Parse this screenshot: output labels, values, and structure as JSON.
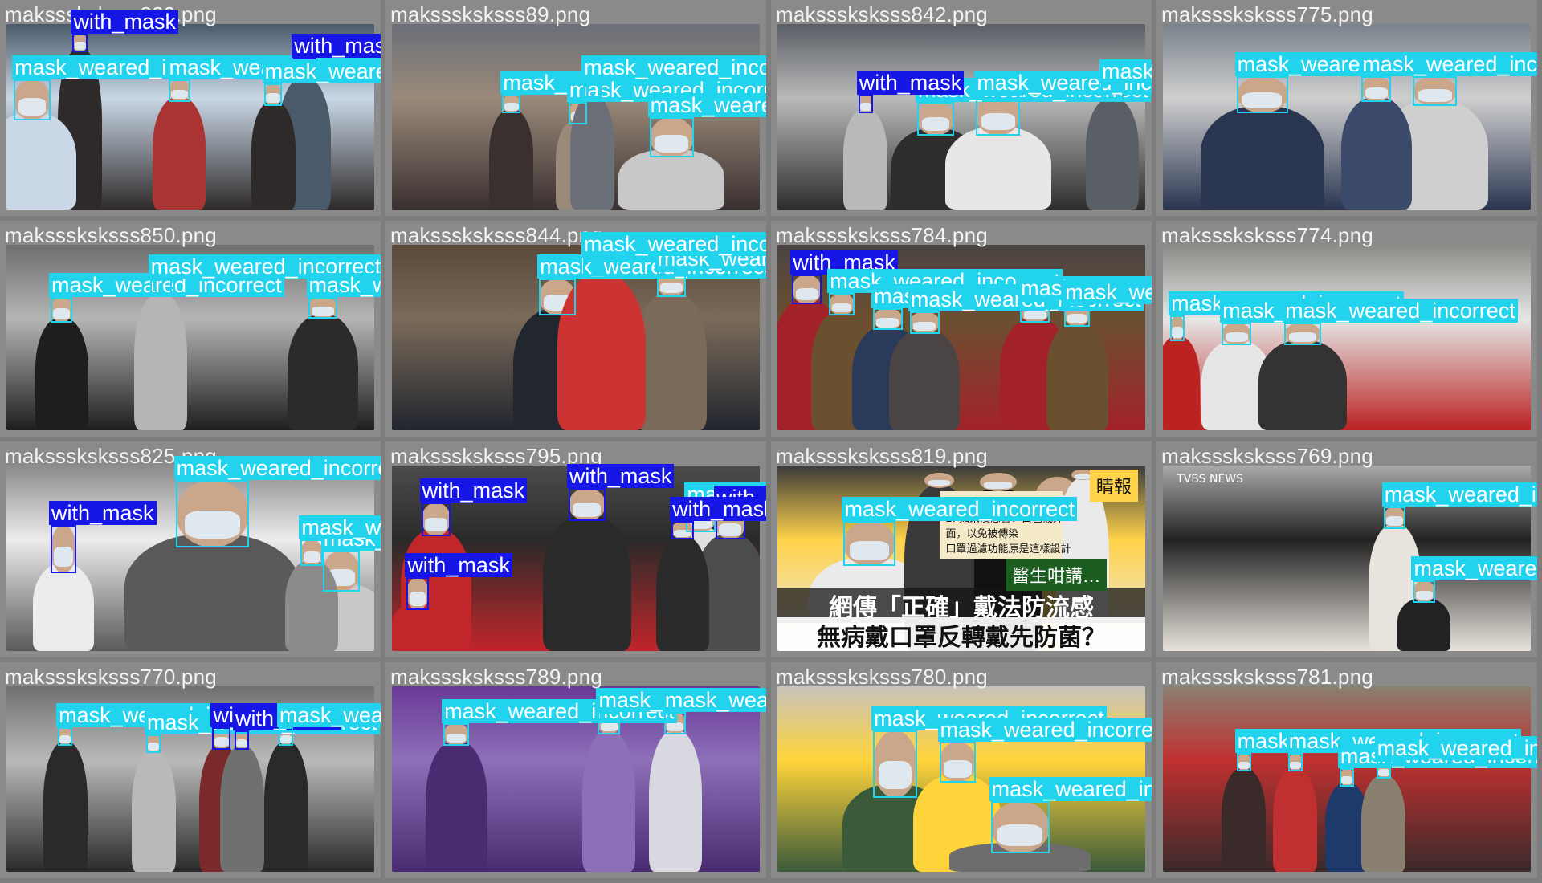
{
  "grid": {
    "tiles": [
      {
        "file": "maksssksksss829.png",
        "colors": [
          "#4a5a6a",
          "#2e2a2a",
          "#c9d7e6",
          "#a33"
        ],
        "detections": [
          {
            "label": "with_mask",
            "cls": "wm"
          },
          {
            "label": "mask_weared_incorrect",
            "cls": "mwi"
          },
          {
            "label": "mask_weared_incorrect",
            "cls": "mwi"
          },
          {
            "label": "with_mask",
            "cls": "wm"
          },
          {
            "label": "mask_weared_incorrect",
            "cls": "mwi"
          }
        ]
      },
      {
        "file": "maksssksksss89.png",
        "colors": [
          "#6b6f78",
          "#3a3030",
          "#9a8a7a",
          "#c8c8c8"
        ],
        "detections": [
          {
            "label": "mask_weared_incorrect",
            "cls": "mwi"
          },
          {
            "label": "mask_weared_incorrect",
            "cls": "mwi"
          },
          {
            "label": "mask_weared_incorrect",
            "cls": "mwi"
          },
          {
            "label": "mask_weared_incorrect",
            "cls": "mwi"
          }
        ]
      },
      {
        "file": "maksssksksss842.png",
        "colors": [
          "#5a5f66",
          "#2d2d2d",
          "#b9b9b9",
          "#e7e7e7"
        ],
        "detections": [
          {
            "label": "mask_weared_incorrect",
            "cls": "mwi"
          },
          {
            "label": "with_mask",
            "cls": "wm"
          },
          {
            "label": "mask_weared_incorrect",
            "cls": "mwi"
          },
          {
            "label": "mask_weared_incorrect",
            "cls": "mwi"
          }
        ]
      },
      {
        "file": "maksssksksss775.png",
        "colors": [
          "#7a828c",
          "#2a3550",
          "#cfcfcf",
          "#3b4a6a"
        ],
        "detections": [
          {
            "label": "mask_weared_incorrect",
            "cls": "mwi"
          },
          {
            "label": "mask_weared_incorrect",
            "cls": "mwi"
          },
          {
            "label": "mask_weared_incorrect",
            "cls": "mwi"
          }
        ]
      },
      {
        "file": "maksssksksss850.png",
        "colors": [
          "#6e6e6e",
          "#1e1e1e",
          "#b5b5b5",
          "#2b2b2b"
        ],
        "detections": [
          {
            "label": "mask_weared_incorrect",
            "cls": "mwi"
          },
          {
            "label": "mask_weared_incorrect",
            "cls": "mwi"
          },
          {
            "label": "mask_weared_incorrect",
            "cls": "mwi"
          }
        ]
      },
      {
        "file": "maksssksksss844.png",
        "colors": [
          "#5b4a3a",
          "#22262e",
          "#7a6a5a",
          "#c33"
        ],
        "detections": [
          {
            "label": "mask_weared_incorrect",
            "cls": "mwi"
          },
          {
            "label": "mask_weared_incorrect",
            "cls": "mwi"
          },
          {
            "label": "mask_weared_incorrect",
            "cls": "mwi"
          }
        ]
      },
      {
        "file": "maksssksksss784.png",
        "colors": [
          "#4a4444",
          "#a3222a",
          "#6b5030",
          "#2a3a5a"
        ],
        "detections": [
          {
            "label": "with_mask",
            "cls": "wm"
          },
          {
            "label": "mask_weared_incorrect",
            "cls": "mwi"
          },
          {
            "label": "mask_weared_incorrect",
            "cls": "mwi"
          },
          {
            "label": "mask_weared_incorrect",
            "cls": "mwi"
          },
          {
            "label": "mask_weared_incorrect",
            "cls": "mwi"
          },
          {
            "label": "mask_weared_incorrect",
            "cls": "mwi"
          }
        ]
      },
      {
        "file": "maksssksksss774.png",
        "colors": [
          "#8a8a86",
          "#b22",
          "#e6e6e6",
          "#333"
        ],
        "detections": [
          {
            "label": "mask_weared_incorrect",
            "cls": "mwi"
          },
          {
            "label": "mask_weared_incorrect",
            "cls": "mwi"
          },
          {
            "label": "mask_weared_incorrect",
            "cls": "mwi"
          }
        ]
      },
      {
        "file": "maksssksksss825.png",
        "colors": [
          "#8b8b8b",
          "#5a5a5a",
          "#ececec",
          "#c8c8c8"
        ],
        "detections": [
          {
            "label": "mask_weared_incorrect",
            "cls": "mwi"
          },
          {
            "label": "with_mask",
            "cls": "wm"
          },
          {
            "label": "mask_weared_incorrect",
            "cls": "mwi"
          },
          {
            "label": "mask_weared_incorrect",
            "cls": "mwi"
          }
        ]
      },
      {
        "file": "maksssksksss795.png",
        "colors": [
          "#4c4c4c",
          "#c0262a",
          "#2a2a2a",
          "#e0e0e0"
        ],
        "detections": [
          {
            "label": "with_mask",
            "cls": "wm"
          },
          {
            "label": "with_mask",
            "cls": "wm"
          },
          {
            "label": "mask_weared_incorrect",
            "cls": "mwi"
          },
          {
            "label": "with_mask",
            "cls": "wm"
          },
          {
            "label": "with_mask",
            "cls": "wm"
          },
          {
            "label": "with_mask",
            "cls": "wm"
          }
        ]
      },
      {
        "file": "maksssksksss819.png",
        "colors": [
          "#3a3a3a",
          "#eaeaea",
          "#ffd24a",
          "#111"
        ],
        "detections": [
          {
            "label": "mask_weared_incorrect",
            "cls": "mwi"
          }
        ],
        "caption_line1": "網傳「正確」戴法防流感",
        "caption_line2": "無病戴口罩反轉戴先防菌？",
        "corner_tag": "睛報",
        "side_note": "醫生咁講…",
        "notes": "在外面，以免感染他人\n2. 如果沒感冒：白色戴外\n面，以免被傳染\n口罩過濾功能原是這樣設計"
      },
      {
        "file": "maksssksksss769.png",
        "colors": [
          "#a9a9a9",
          "#e8e3dc",
          "#222",
          "#d04040"
        ],
        "detections": [
          {
            "label": "mask_weared_incorrect",
            "cls": "mwi"
          },
          {
            "label": "mask_weared_incorrect",
            "cls": "mwi"
          }
        ],
        "logo": "TVBS NEWS"
      },
      {
        "file": "maksssksksss770.png",
        "colors": [
          "#6f7070",
          "#2a2a2a",
          "#b9b9b9",
          "#7a2a2a"
        ],
        "detections": [
          {
            "label": "mask_weared_incorrect",
            "cls": "mwi"
          },
          {
            "label": "mask_weared_incorrect",
            "cls": "mwi"
          },
          {
            "label": "with_mask",
            "cls": "wm"
          },
          {
            "label": "with_mask",
            "cls": "wm"
          },
          {
            "label": "mask_weared_incorrect",
            "cls": "mwi"
          }
        ]
      },
      {
        "file": "maksssksksss789.png",
        "colors": [
          "#6a3a98",
          "#4a2a70",
          "#8d6fb8",
          "#d8d8e0"
        ],
        "detections": [
          {
            "label": "mask_weared_incorrect",
            "cls": "mwi"
          },
          {
            "label": "mask_weared_incorrect",
            "cls": "mwi"
          },
          {
            "label": "mask_weared_incorrect",
            "cls": "mwi"
          }
        ]
      },
      {
        "file": "maksssksksss780.png",
        "colors": [
          "#c8c3bb",
          "#3a5a3a",
          "#ffd43a",
          "#6d6d6d"
        ],
        "detections": [
          {
            "label": "mask_weared_incorrect",
            "cls": "mwi"
          },
          {
            "label": "mask_weared_incorrect",
            "cls": "mwi"
          },
          {
            "label": "mask_weared_incorrect",
            "cls": "mwi"
          }
        ]
      },
      {
        "file": "maksssksksss781.png",
        "colors": [
          "#8a8070",
          "#3a2a2a",
          "#c03030",
          "#1e3a6a"
        ],
        "detections": [
          {
            "label": "mask_weared_incorrect",
            "cls": "mwi"
          },
          {
            "label": "mask_weared_incorrect",
            "cls": "mwi"
          },
          {
            "label": "mask_weared_incorrect",
            "cls": "mwi"
          },
          {
            "label": "mask_weared_incorrect",
            "cls": "mwi"
          }
        ]
      }
    ]
  }
}
